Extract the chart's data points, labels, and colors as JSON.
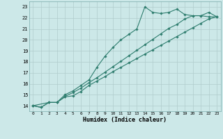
{
  "xlabel": "Humidex (Indice chaleur)",
  "background_color": "#cce8e8",
  "grid_color": "#b0cccc",
  "line_color": "#2e7d6e",
  "xlim": [
    -0.5,
    23.5
  ],
  "ylim": [
    13.5,
    23.5
  ],
  "xticks": [
    0,
    1,
    2,
    3,
    4,
    5,
    6,
    7,
    8,
    9,
    10,
    11,
    12,
    13,
    14,
    15,
    16,
    17,
    18,
    19,
    20,
    21,
    22,
    23
  ],
  "yticks": [
    14,
    15,
    16,
    17,
    18,
    19,
    20,
    21,
    22,
    23
  ],
  "line1_x": [
    0,
    1,
    2,
    3,
    4,
    5,
    6,
    7,
    8,
    9,
    10,
    11,
    12,
    13,
    14,
    15,
    16,
    17,
    18,
    19,
    20,
    21,
    22,
    23
  ],
  "line1_y": [
    14,
    13.85,
    14.3,
    14.3,
    15.0,
    15.35,
    15.85,
    16.35,
    17.5,
    18.5,
    19.3,
    20.0,
    20.5,
    21.0,
    23.0,
    22.5,
    22.4,
    22.5,
    22.8,
    22.3,
    22.2,
    22.2,
    22.5,
    22.1
  ],
  "line2_x": [
    0,
    1,
    2,
    3,
    4,
    5,
    6,
    7,
    8,
    9,
    10,
    11,
    12,
    13,
    14,
    15,
    16,
    17,
    18,
    19,
    20,
    21,
    22,
    23
  ],
  "line2_y": [
    14,
    13.85,
    14.3,
    14.3,
    14.8,
    14.9,
    15.3,
    15.85,
    16.25,
    16.65,
    17.1,
    17.5,
    17.9,
    18.3,
    18.7,
    19.1,
    19.5,
    19.9,
    20.3,
    20.7,
    21.1,
    21.5,
    21.9,
    22.1
  ],
  "line3_x": [
    0,
    2,
    3,
    4,
    5,
    6,
    7,
    8,
    9,
    10,
    11,
    12,
    13,
    14,
    15,
    16,
    17,
    18,
    19,
    20,
    21,
    22,
    23
  ],
  "line3_y": [
    14,
    14.3,
    14.3,
    14.85,
    15.2,
    15.6,
    16.1,
    16.55,
    17.05,
    17.55,
    18.05,
    18.55,
    19.05,
    19.55,
    20.05,
    20.55,
    21.05,
    21.4,
    21.9,
    22.2,
    22.2,
    22.1,
    22.1
  ]
}
